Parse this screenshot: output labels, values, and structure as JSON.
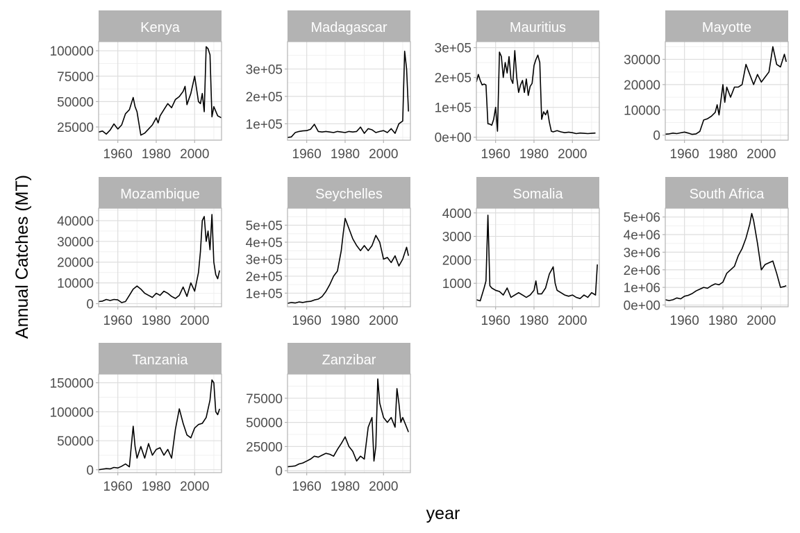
{
  "chart_data": {
    "type": "line",
    "title": "",
    "xlabel": "year",
    "ylabel": "Annual Catches (MT)",
    "grid": true,
    "legend": "none",
    "x_range": [
      1950,
      2014
    ],
    "x_ticks": [
      1960,
      1980,
      2000
    ],
    "x_tick_labels": [
      "1960",
      "1980",
      "2000"
    ],
    "panels": [
      {
        "name": "Kenya",
        "ylim": [
          12000,
          109000
        ],
        "y_ticks": [
          25000,
          50000,
          75000,
          100000
        ],
        "y_tick_labels": [
          "25000",
          "50000",
          "75000",
          "100000"
        ],
        "x": [
          1950,
          1952,
          1954,
          1956,
          1958,
          1960,
          1962,
          1964,
          1966,
          1968,
          1969,
          1970,
          1972,
          1974,
          1976,
          1978,
          1980,
          1981,
          1982,
          1984,
          1986,
          1988,
          1990,
          1992,
          1994,
          1995,
          1996,
          1998,
          2000,
          2002,
          2003,
          2004,
          2005,
          2006,
          2007,
          2008,
          2009,
          2010,
          2012,
          2014
        ],
        "y": [
          20000,
          21000,
          18000,
          22000,
          28000,
          23000,
          27000,
          38000,
          42000,
          54000,
          45000,
          40000,
          17000,
          19000,
          23000,
          27000,
          34000,
          29000,
          36000,
          42000,
          48000,
          44000,
          52000,
          55000,
          60000,
          65000,
          47000,
          58000,
          75000,
          50000,
          48000,
          58000,
          40000,
          104000,
          102000,
          96000,
          35000,
          45000,
          36000,
          34000
        ]
      },
      {
        "name": "Madagascar",
        "ylim": [
          40000,
          400000
        ],
        "y_ticks": [
          100000,
          200000,
          300000
        ],
        "y_tick_labels": [
          "1e+05",
          "2e+05",
          "3e+05"
        ],
        "x": [
          1950,
          1952,
          1954,
          1956,
          1958,
          1960,
          1962,
          1964,
          1966,
          1968,
          1970,
          1972,
          1974,
          1976,
          1978,
          1980,
          1982,
          1984,
          1986,
          1988,
          1990,
          1992,
          1994,
          1996,
          1998,
          2000,
          2002,
          2004,
          2006,
          2008,
          2010,
          2011,
          2012,
          2013
        ],
        "y": [
          50000,
          52000,
          68000,
          72000,
          74000,
          75000,
          80000,
          98000,
          72000,
          70000,
          72000,
          70000,
          68000,
          72000,
          70000,
          68000,
          72000,
          70000,
          72000,
          88000,
          65000,
          82000,
          78000,
          68000,
          72000,
          75000,
          68000,
          82000,
          65000,
          100000,
          110000,
          365000,
          300000,
          145000
        ]
      },
      {
        "name": "Mauritius",
        "ylim": [
          -10000,
          320000
        ],
        "y_ticks": [
          0,
          100000,
          200000,
          300000
        ],
        "y_tick_labels": [
          "0e+00",
          "1e+05",
          "2e+05",
          "3e+05"
        ],
        "x": [
          1950,
          1951,
          1952,
          1953,
          1954,
          1955,
          1956,
          1957,
          1958,
          1959,
          1960,
          1961,
          1962,
          1963,
          1964,
          1965,
          1966,
          1967,
          1968,
          1969,
          1970,
          1971,
          1972,
          1973,
          1974,
          1975,
          1976,
          1977,
          1978,
          1979,
          1980,
          1981,
          1982,
          1983,
          1984,
          1985,
          1986,
          1987,
          1988,
          1989,
          1990,
          1991,
          1992,
          1994,
          1996,
          1998,
          2000,
          2002,
          2004,
          2006,
          2008,
          2010,
          2012
        ],
        "y": [
          185000,
          210000,
          190000,
          175000,
          178000,
          175000,
          45000,
          44000,
          40000,
          60000,
          100000,
          20000,
          285000,
          270000,
          200000,
          250000,
          215000,
          270000,
          195000,
          180000,
          290000,
          200000,
          150000,
          175000,
          190000,
          150000,
          195000,
          140000,
          170000,
          180000,
          240000,
          260000,
          275000,
          250000,
          60000,
          85000,
          75000,
          90000,
          50000,
          20000,
          18000,
          20000,
          22000,
          18000,
          15000,
          17000,
          15000,
          12000,
          14000,
          13000,
          12000,
          13000,
          14000
        ]
      },
      {
        "name": "Mayotte",
        "ylim": [
          -2000,
          37000
        ],
        "y_ticks": [
          0,
          10000,
          20000,
          30000
        ],
        "y_tick_labels": [
          "0",
          "10000",
          "20000",
          "30000"
        ],
        "x": [
          1950,
          1952,
          1954,
          1956,
          1958,
          1960,
          1962,
          1964,
          1966,
          1968,
          1970,
          1972,
          1974,
          1976,
          1977,
          1978,
          1980,
          1981,
          1982,
          1984,
          1986,
          1988,
          1990,
          1992,
          1994,
          1996,
          1998,
          2000,
          2002,
          2004,
          2006,
          2008,
          2010,
          2012,
          2013
        ],
        "y": [
          400,
          500,
          800,
          600,
          900,
          1200,
          800,
          300,
          500,
          1500,
          6000,
          6500,
          7500,
          9000,
          12000,
          8000,
          20000,
          13000,
          19000,
          15000,
          19000,
          19000,
          20000,
          28000,
          24000,
          20000,
          24000,
          21000,
          23000,
          25000,
          35000,
          28000,
          27000,
          32000,
          29000
        ]
      },
      {
        "name": "Mozambique",
        "ylim": [
          -1500,
          46000
        ],
        "y_ticks": [
          0,
          10000,
          20000,
          30000,
          40000
        ],
        "y_tick_labels": [
          "0",
          "10000",
          "20000",
          "30000",
          "40000"
        ],
        "x": [
          1950,
          1952,
          1954,
          1956,
          1958,
          1960,
          1962,
          1964,
          1966,
          1968,
          1970,
          1972,
          1974,
          1976,
          1978,
          1980,
          1982,
          1984,
          1986,
          1988,
          1990,
          1992,
          1994,
          1996,
          1998,
          2000,
          2002,
          2003,
          2004,
          2005,
          2006,
          2007,
          2008,
          2009,
          2010,
          2011,
          2012,
          2013
        ],
        "y": [
          1000,
          1200,
          2000,
          1500,
          2000,
          1800,
          500,
          1000,
          4000,
          7000,
          8500,
          7000,
          5000,
          4000,
          3000,
          5000,
          4000,
          6000,
          5000,
          3500,
          2500,
          4000,
          8000,
          3500,
          10000,
          6000,
          15000,
          25000,
          40000,
          42000,
          30000,
          35000,
          26000,
          43000,
          20000,
          14000,
          12000,
          16000
        ]
      },
      {
        "name": "Seychelles",
        "ylim": [
          20000,
          600000
        ],
        "y_ticks": [
          100000,
          200000,
          300000,
          400000,
          500000
        ],
        "y_tick_labels": [
          "1e+05",
          "2e+05",
          "3e+05",
          "4e+05",
          "5e+05"
        ],
        "x": [
          1950,
          1952,
          1954,
          1956,
          1958,
          1960,
          1962,
          1964,
          1966,
          1968,
          1970,
          1972,
          1974,
          1976,
          1978,
          1979,
          1980,
          1982,
          1984,
          1986,
          1988,
          1990,
          1992,
          1994,
          1996,
          1998,
          2000,
          2002,
          2004,
          2006,
          2008,
          2010,
          2012,
          2013
        ],
        "y": [
          40000,
          45000,
          42000,
          48000,
          45000,
          50000,
          52000,
          60000,
          65000,
          80000,
          110000,
          150000,
          200000,
          230000,
          350000,
          450000,
          540000,
          480000,
          420000,
          380000,
          350000,
          380000,
          350000,
          380000,
          440000,
          400000,
          300000,
          310000,
          280000,
          320000,
          260000,
          300000,
          370000,
          320000
        ]
      },
      {
        "name": "Somalia",
        "ylim": [
          0,
          4200
        ],
        "y_ticks": [
          1000,
          2000,
          3000,
          4000
        ],
        "y_tick_labels": [
          "1000",
          "2000",
          "3000",
          "4000"
        ],
        "x": [
          1950,
          1952,
          1954,
          1955,
          1956,
          1957,
          1958,
          1960,
          1962,
          1964,
          1966,
          1968,
          1970,
          1972,
          1974,
          1976,
          1978,
          1980,
          1981,
          1982,
          1984,
          1986,
          1988,
          1990,
          1991,
          1992,
          1994,
          1996,
          1998,
          2000,
          2002,
          2004,
          2006,
          2008,
          2010,
          2012,
          2013
        ],
        "y": [
          300,
          250,
          800,
          1100,
          3900,
          900,
          800,
          700,
          650,
          500,
          800,
          400,
          500,
          600,
          500,
          400,
          500,
          700,
          1100,
          550,
          550,
          800,
          1400,
          1700,
          1000,
          700,
          600,
          500,
          450,
          500,
          400,
          350,
          500,
          400,
          600,
          500,
          1800
        ]
      },
      {
        "name": "South Africa",
        "ylim": [
          -100000,
          5500000
        ],
        "y_ticks": [
          0,
          1000000,
          2000000,
          3000000,
          4000000,
          5000000
        ],
        "y_tick_labels": [
          "0e+00",
          "1e+06",
          "2e+06",
          "3e+06",
          "4e+06",
          "5e+06"
        ],
        "x": [
          1950,
          1952,
          1954,
          1956,
          1958,
          1960,
          1962,
          1964,
          1966,
          1968,
          1970,
          1972,
          1974,
          1976,
          1978,
          1980,
          1982,
          1984,
          1986,
          1988,
          1990,
          1992,
          1994,
          1995,
          1996,
          1998,
          2000,
          2002,
          2004,
          2006,
          2008,
          2010,
          2012,
          2013
        ],
        "y": [
          300000,
          250000,
          300000,
          400000,
          350000,
          500000,
          550000,
          650000,
          800000,
          900000,
          1000000,
          950000,
          1100000,
          1200000,
          1150000,
          1300000,
          1800000,
          2000000,
          2200000,
          2800000,
          3200000,
          3800000,
          4600000,
          5200000,
          4800000,
          3500000,
          2000000,
          2300000,
          2400000,
          2500000,
          1800000,
          1000000,
          1050000,
          1100000
        ]
      },
      {
        "name": "Tanzania",
        "ylim": [
          -5000,
          165000
        ],
        "y_ticks": [
          0,
          50000,
          100000,
          150000
        ],
        "y_tick_labels": [
          "0",
          "50000",
          "100000",
          "150000"
        ],
        "x": [
          1950,
          1952,
          1954,
          1956,
          1958,
          1960,
          1962,
          1964,
          1966,
          1967,
          1968,
          1969,
          1970,
          1972,
          1974,
          1976,
          1978,
          1980,
          1982,
          1984,
          1986,
          1988,
          1990,
          1992,
          1994,
          1996,
          1998,
          2000,
          2002,
          2004,
          2006,
          2008,
          2009,
          2010,
          2011,
          2012,
          2013
        ],
        "y": [
          0,
          1000,
          2000,
          1500,
          4000,
          3000,
          6000,
          10000,
          5000,
          40000,
          75000,
          40000,
          20000,
          40000,
          20000,
          45000,
          25000,
          35000,
          38000,
          25000,
          35000,
          20000,
          70000,
          105000,
          80000,
          60000,
          55000,
          72000,
          78000,
          80000,
          90000,
          120000,
          155000,
          150000,
          100000,
          95000,
          105000
        ]
      },
      {
        "name": "Zanzibar",
        "ylim": [
          -2000,
          100000
        ],
        "y_ticks": [
          0,
          25000,
          50000,
          75000
        ],
        "y_tick_labels": [
          "0",
          "25000",
          "50000",
          "75000"
        ],
        "x": [
          1950,
          1952,
          1954,
          1956,
          1958,
          1960,
          1962,
          1964,
          1966,
          1968,
          1970,
          1972,
          1974,
          1976,
          1978,
          1980,
          1982,
          1984,
          1986,
          1988,
          1990,
          1992,
          1994,
          1995,
          1996,
          1997,
          1998,
          2000,
          2002,
          2004,
          2006,
          2007,
          2008,
          2009,
          2010,
          2012,
          2013
        ],
        "y": [
          4000,
          4500,
          5000,
          7000,
          8000,
          10000,
          12000,
          15000,
          14000,
          16000,
          18000,
          17000,
          15000,
          22000,
          28000,
          35000,
          25000,
          20000,
          10000,
          15000,
          12000,
          45000,
          55000,
          10000,
          25000,
          95000,
          70000,
          55000,
          50000,
          55000,
          45000,
          85000,
          70000,
          50000,
          55000,
          45000,
          40000
        ]
      }
    ]
  }
}
